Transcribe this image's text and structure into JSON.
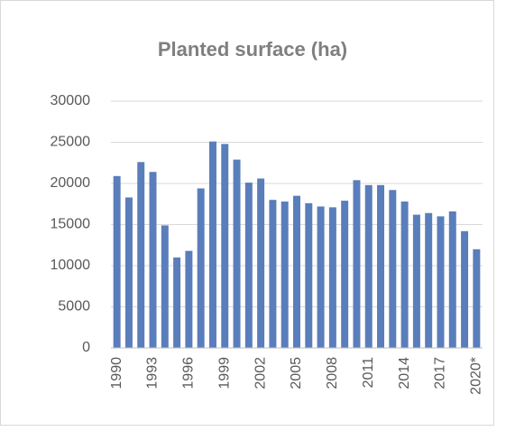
{
  "chart_data": {
    "type": "bar",
    "title": "Planted surface (ha)",
    "categories": [
      "1990",
      null,
      null,
      "1993",
      null,
      null,
      "1996",
      null,
      null,
      "1999",
      null,
      null,
      "2002",
      null,
      null,
      "2005",
      null,
      null,
      "2008",
      null,
      null,
      "2011",
      null,
      null,
      "2014",
      null,
      null,
      "2017",
      null,
      null,
      "2020*"
    ],
    "values": [
      20900,
      18300,
      22600,
      21400,
      14900,
      11000,
      11800,
      19400,
      25100,
      24800,
      22900,
      20100,
      20600,
      18000,
      17800,
      18500,
      17600,
      17200,
      17100,
      17900,
      20400,
      19800,
      19800,
      19200,
      17800,
      16200,
      16400,
      16000,
      16600,
      14200,
      12000
    ],
    "color": "#5a7dbb",
    "ylim": [
      0,
      30000
    ],
    "yticks": [
      0,
      5000,
      10000,
      15000,
      20000,
      25000,
      30000
    ],
    "grid": true
  }
}
